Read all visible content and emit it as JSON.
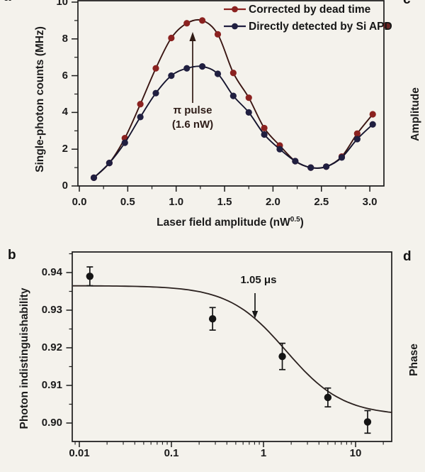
{
  "figure": {
    "panels": {
      "a": "a",
      "b": "b",
      "c": "c",
      "d": "d"
    },
    "cut_panel_c_ylabel": "Amplitude",
    "cut_panel_d_ylabel": "Phase",
    "colors": {
      "background": "#f4f2ec",
      "ink": "#1c1c1c"
    }
  },
  "chart_data": [
    {
      "panel": "a",
      "type": "line",
      "title": "",
      "xlabel": {
        "pre": "Laser field amplitude (nW",
        "sup": "0.5",
        "post": ")"
      },
      "ylabel": "Single-photon counts (MHz)",
      "xlim": [
        -0.015,
        3.15
      ],
      "ylim": [
        0,
        10.1
      ],
      "grid": false,
      "legend_position": "top-right-inside",
      "x_major_ticks": [
        0,
        0.5,
        1.0,
        1.5,
        2.0,
        2.5,
        3.0
      ],
      "x_tick_labels": [
        "0.0",
        "0.5",
        "1.0",
        "1.5",
        "2.0",
        "2.5",
        "3.0"
      ],
      "x_minor_tick_step": 0.25,
      "y_major_ticks": [
        0,
        2,
        4,
        6,
        8,
        10
      ],
      "y_tick_labels": [
        "0",
        "2",
        "4",
        "6",
        "8",
        "10"
      ],
      "y_minor_ticks": [
        1,
        3,
        5,
        7,
        9
      ],
      "x": [
        0.15,
        0.31,
        0.47,
        0.63,
        0.79,
        0.95,
        1.11,
        1.27,
        1.43,
        1.59,
        1.75,
        1.91,
        2.07,
        2.23,
        2.39,
        2.55,
        2.71,
        2.87,
        3.03
      ],
      "series": [
        {
          "name": "Corrected by dead time",
          "marker_color": "#8b2220",
          "line_color": "#3a1512",
          "values": [
            0.45,
            1.25,
            2.6,
            4.45,
            6.4,
            8.05,
            8.85,
            9.0,
            8.25,
            6.15,
            4.8,
            3.15,
            2.2,
            1.35,
            1.0,
            1.05,
            1.6,
            2.85,
            3.9
          ]
        },
        {
          "name": "Directly detected by Si APD",
          "marker_color": "#201f40",
          "line_color": "#15142e",
          "values": [
            0.45,
            1.25,
            2.35,
            3.75,
            5.05,
            6.0,
            6.4,
            6.5,
            6.1,
            4.9,
            4.0,
            2.8,
            2.0,
            1.35,
            1.0,
            1.05,
            1.55,
            2.55,
            3.35
          ]
        }
      ],
      "annotation": {
        "line1": "π pulse",
        "line2": "(1.6 nW)",
        "arrow_points_to_x": 1.17,
        "arrow_color": "#301b15"
      }
    },
    {
      "panel": "b",
      "type": "scatter",
      "title": "",
      "xlabel": "",
      "ylabel": "Photon indistinguishability",
      "x_scale": "log",
      "xlim": [
        0.0085,
        25
      ],
      "ylim": [
        0.8951,
        0.9455
      ],
      "grid": false,
      "x_major_ticks": [
        0.01,
        0.1,
        1,
        10
      ],
      "x_tick_labels": [
        "0.01",
        "0.1",
        "1",
        "10"
      ],
      "y_major_ticks": [
        0.9,
        0.91,
        0.92,
        0.93,
        0.94
      ],
      "y_tick_labels": [
        "0.90",
        "0.91",
        "0.92",
        "0.93",
        "0.94"
      ],
      "y_minor_ticks": [
        0.905,
        0.915,
        0.925,
        0.935,
        0.945
      ],
      "points": {
        "x": [
          0.013,
          0.28,
          1.6,
          5.0,
          13.5
        ],
        "y": [
          0.939,
          0.9277,
          0.9177,
          0.9068,
          0.9003
        ],
        "yerr": [
          0.0025,
          0.003,
          0.0035,
          0.0025,
          0.003
        ]
      },
      "fit_curve": {
        "y_base": 0.902,
        "amplitude": 0.0345,
        "center": 1.75,
        "exponent": 1.4
      },
      "annotation": {
        "text": "1.05 μs",
        "arrow_points_to_x": 0.85,
        "arrow_color": "#191919"
      },
      "marker_color": "#151515",
      "curve_color": "#2b211f"
    }
  ]
}
